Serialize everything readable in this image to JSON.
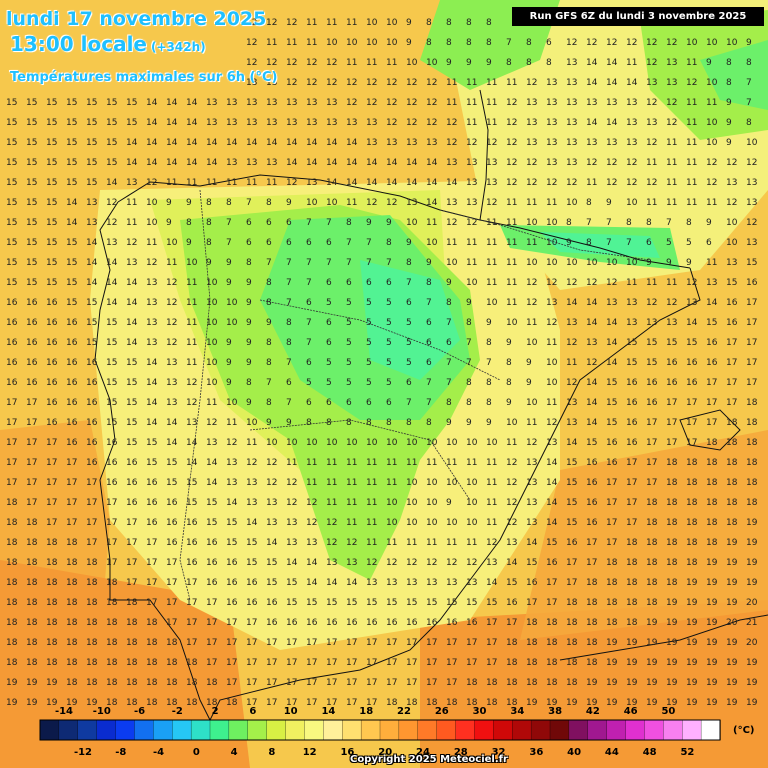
{
  "header": {
    "date_line": "lundi 17 novembre 2025",
    "time_line": "13:00 locale",
    "lead_time": "(+342h)",
    "subtitle": "Températures maximales sur 6h (°C)",
    "run_info": "Run GFS 6Z du lundi 3 novembre 2025"
  },
  "legend": {
    "upper_labels": [
      "-14",
      "-10",
      "-6",
      "-2",
      "2",
      "6",
      "10",
      "14",
      "18",
      "22",
      "26",
      "30",
      "34",
      "38",
      "42",
      "46",
      "50"
    ],
    "lower_labels": [
      "-12",
      "-8",
      "-4",
      "0",
      "4",
      "8",
      "12",
      "16",
      "20",
      "24",
      "28",
      "32",
      "36",
      "40",
      "44",
      "48",
      "52"
    ],
    "colors": [
      "#0b1a4a",
      "#0e2a74",
      "#0f3aa0",
      "#0a2ccf",
      "#0b3cf0",
      "#1270f0",
      "#1aa0f5",
      "#26c7f5",
      "#2ee0c8",
      "#3ef08e",
      "#6ef060",
      "#a4f04a",
      "#d8f044",
      "#f0f060",
      "#f8f880",
      "#fff09a",
      "#ffe070",
      "#ffc850",
      "#ffae3c",
      "#ff9630",
      "#ff7a28",
      "#ff5a20",
      "#ff3020",
      "#f01010",
      "#d00808",
      "#b00808",
      "#900808",
      "#700808",
      "#801060",
      "#a01890",
      "#c020b0",
      "#e030d0",
      "#f050e0",
      "#f880f0",
      "#ffb0ff",
      "#ffffff"
    ],
    "unit": "(°C)"
  },
  "copyright": "Copyright 2025 Meteociel.fr",
  "grid_numbers": [
    "15 14 14 14 13 13 13 13 13 13 12 12 12 12 12 11 11 11 10 10 9 8 8 8 8 7 8 9 10 11 11 12 12 12 11 12 11 10 10",
    "14 14 14 13 13 13 13 13 12 12 12 12 12 11 11 11 10 10 10 10 9 8 8 8 8 7 8 6 12 12 12 12 12 12 10 10 10 9 10",
    "15 15 15 14 14 14 14 14 13 13 13 13 12 12 12 12 12 11 11 11 10 10 9 9 9 8 8 8 13 14 14 11 12 13 11 9 8 8 8",
    "15 15 15 15 15 15 14 14 14 14 13 13 13 13 12 12 12 12 12 12 12 12 11 11 11 11 12 13 13 14 14 14 13 13 12 10 8 7 6",
    "15 15 15 15 15 15 15 14 14 14 13 13 13 13 13 13 13 12 12 12 12 12 11 11 11 12 13 13 13 13 13 13 12 12 11 11 9 7 6",
    "15 15 15 15 15 15 15 14 14 14 13 13 13 13 13 13 13 13 13 12 12 12 12 11 11 12 13 13 13 14 14 13 13 12 11 10 9 8 8",
    "15 15 15 15 15 15 14 14 14 14 14 14 14 14 14 14 14 14 13 13 13 13 12 12 12 12 13 13 13 13 13 13 12 11 11 10 9 10 11",
    "15 15 15 15 15 15 14 14 14 14 14 13 13 13 14 14 14 14 14 14 14 14 13 13 13 12 12 13 13 12 12 12 11 11 11 12 12 12 12",
    "15 15 15 15 15 14 13 12 11 11 11 11 11 11 12 13 14 14 14 14 14 14 14 13 13 12 12 12 12 11 12 12 12 11 11 12 13 13 13",
    "15 15 15 14 13 12 11 10 9 9 8 8 7 8 9 10 10 11 12 12 13 14 13 13 12 11 11 11 10 8 9 10 11 11 11 11 12 13 14",
    "15 15 15 14 13 12 11 10 9 8 8 7 6 6 6 7 7 8 9 9 10 11 12 12 11 11 10 10 8 7 7 8 8 7 8 9 10 12 14",
    "15 15 15 15 14 13 12 11 10 9 8 7 6 6 6 6 6 7 7 8 9 10 11 11 11 11 11 10 9 8 7 7 6 5 5 6 10 13 15",
    "15 15 15 15 14 14 13 12 11 10 9 9 8 7 7 7 7 7 7 7 8 9 10 11 11 11 10 10 10 10 10 10 9 9 9 11 13 15 16",
    "15 15 15 15 14 14 14 13 12 11 10 9 9 8 7 7 6 6 6 6 7 8 9 10 11 11 12 12 12 12 12 11 11 11 12 13 15 16 17",
    "16 16 16 15 15 14 14 13 12 11 10 10 9 8 7 6 5 5 5 5 6 7 8 9 10 11 12 13 14 14 13 13 12 12 13 14 16 17 17",
    "16 16 16 16 15 15 14 13 12 11 10 10 9 9 8 7 6 5 5 5 5 6 7 8 9 10 11 12 13 14 14 13 13 13 14 15 16 17 17",
    "16 16 16 16 15 15 14 13 12 11 10 9 9 8 8 7 6 5 5 5 5 6 6 7 8 9 10 11 12 13 14 15 15 15 15 16 17 17 17",
    "16 16 16 16 16 15 15 14 13 11 10 9 9 8 7 6 5 5 5 5 5 6 7 7 7 8 9 10 11 12 14 15 15 16 16 16 17 17 17",
    "16 16 16 16 16 15 15 14 13 12 10 9 8 7 6 5 5 5 5 5 6 7 7 8 8 8 9 10 12 14 15 16 16 16 16 17 17 17 18",
    "17 17 16 16 16 15 15 14 13 12 11 10 9 8 7 6 6 6 6 6 7 7 8 8 8 9 10 11 13 14 15 16 16 17 17 17 17 18 18",
    "17 17 16 16 16 15 15 14 14 13 12 11 10 9 9 8 8 8 8 8 8 8 9 9 9 10 11 12 13 14 15 16 17 17 17 17 18 18 18",
    "17 17 17 16 16 16 15 15 14 14 13 12 11 10 10 10 10 10 10 10 10 10 10 10 10 11 12 13 14 15 16 16 17 17 17 18 18 18 18",
    "17 17 17 17 16 16 16 15 15 14 14 13 12 12 11 11 11 11 11 11 11 11 11 11 11 12 13 14 15 16 16 17 17 18 18 18 18 18 18",
    "17 17 17 17 17 16 16 16 15 15 14 13 13 12 12 11 11 11 11 11 10 10 10 10 11 12 13 14 15 16 17 17 17 18 18 18 18 18 18",
    "18 17 17 17 17 17 16 16 16 15 15 14 13 13 12 12 11 11 11 10 10 10 9 10 11 12 13 14 15 16 17 17 18 18 18 18 18 18 19",
    "18 18 17 17 17 17 17 16 16 16 15 15 14 13 13 12 12 11 11 10 10 10 10 10 11 12 13 14 15 16 17 17 18 18 18 18 18 19 19",
    "18 18 18 18 17 17 17 17 16 16 16 15 15 14 13 13 12 12 11 11 11 11 11 11 12 13 14 15 16 17 17 18 18 18 18 18 19 19 19",
    "18 18 18 18 18 17 17 17 17 16 16 16 15 15 14 14 13 13 12 12 12 12 12 12 13 14 15 16 17 17 18 18 18 18 18 19 19 19 19",
    "18 18 18 18 18 18 17 17 17 17 16 16 16 15 15 14 14 14 13 13 13 13 13 13 14 15 16 17 17 18 18 18 18 18 19 19 19 19 20",
    "18 18 18 18 18 18 18 17 17 17 17 16 16 16 15 15 15 15 15 15 15 15 15 15 15 16 17 17 18 18 18 18 18 19 19 19 19 20 20",
    "18 18 18 18 18 18 18 18 17 17 17 17 17 16 16 16 16 16 16 16 16 16 16 16 17 17 18 18 18 18 18 18 19 19 19 19 20 21 21",
    "18 18 18 18 18 18 18 18 18 17 17 17 17 17 17 17 17 17 17 17 17 17 17 17 17 18 18 18 18 18 19 19 19 19 19 19 19 20 20",
    "18 18 18 18 18 18 18 18 18 18 17 17 17 17 17 17 17 17 17 17 17 17 17 17 17 18 18 18 18 18 19 19 19 19 19 19 19 19 19",
    "19 19 19 18 18 18 18 18 18 18 18 17 17 17 17 17 17 17 17 17 17 17 17 18 18 18 18 18 18 19 19 19 19 19 19 19 19 19 19",
    "19 19 19 19 19 18 18 18 18 18 18 18 17 17 17 17 17 17 17 18 18 18 18 18 18 18 19 19 19 19 19 19 19 19 19 19 19 19 19",
    "19 19 19 19 19 19 19 18 18 18 18 18 18 18 18 18 18 18 18 18 18 18 18 18 19 19 19 19 19 19 19 19 19 19 19 19 19 19 19",
    "19 19 19 19 19 19 19 19 19 18 18 18 18 18 18 18 18 18 18 18 18 18 19 19 19 19 19 19 19 19 19 19 19 19 19 19 19 19 19",
    "19 19 19 19 19 19 19 19 19 19 19 18 18 18 18 18 18 18 18 18 19 19 19 19 19 19 19 19 19 19 19 19 19 19 19 19 19 19 19"
  ]
}
